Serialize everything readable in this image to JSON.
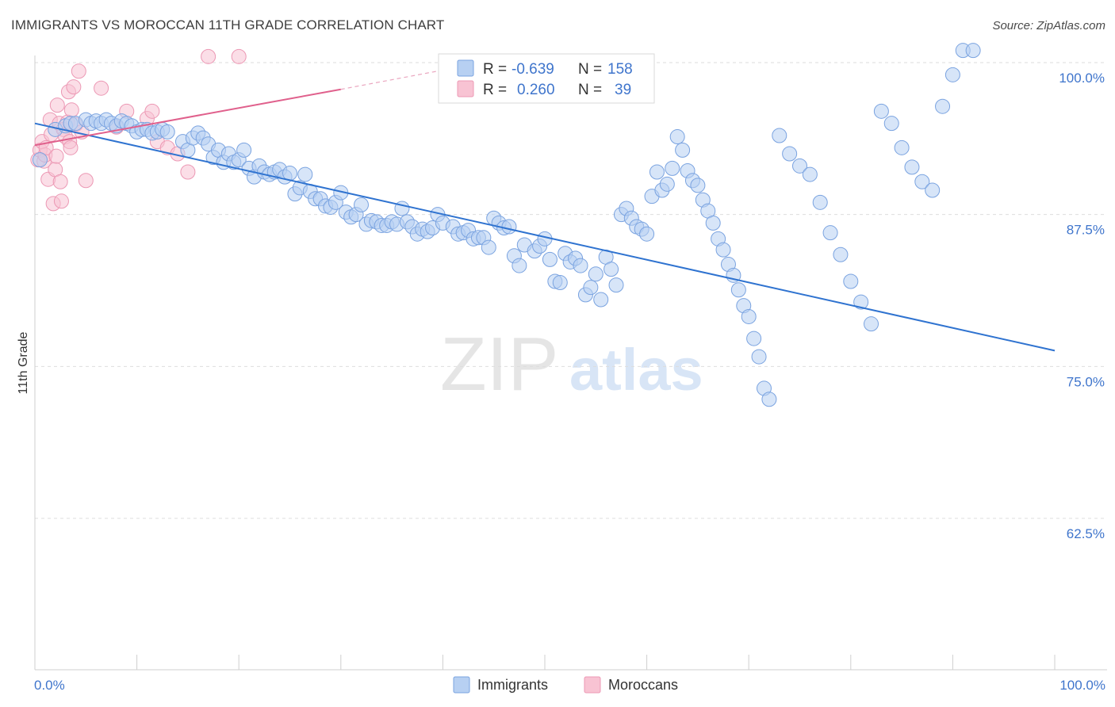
{
  "header": {
    "title": "IMMIGRANTS VS MOROCCAN 11TH GRADE CORRELATION CHART",
    "source": "Source: ZipAtlas.com"
  },
  "watermark": {
    "zip": "ZIP",
    "atlas": "atlas"
  },
  "legend_top": [
    {
      "r_label": "R =",
      "r_value": "-0.639",
      "n_label": "N =",
      "n_value": "158"
    },
    {
      "r_label": "R =",
      "r_value": "0.260",
      "n_label": "N =",
      "n_value": "39"
    }
  ],
  "legend_bottom": [
    "Immigrants",
    "Moroccans"
  ],
  "colors": {
    "immigrants_fill": "#b7d0f2",
    "immigrants_stroke": "#7aa3e0",
    "immigrants_line": "#2f73d0",
    "moroccans_fill": "#f8c3d3",
    "moroccans_stroke": "#ec98b4",
    "moroccans_line": "#e0608c",
    "tick_label": "#3f75cc",
    "grid": "#dddddd"
  },
  "chart_data": {
    "type": "scatter",
    "title": "IMMIGRANTS VS MOROCCAN 11TH GRADE CORRELATION CHART",
    "xlabel": "",
    "ylabel": "11th Grade",
    "xlim": [
      0,
      100
    ],
    "ylim": [
      50.5,
      101.5
    ],
    "x_tick_labels": [
      "0.0%",
      "100.0%"
    ],
    "y_ticks": [
      100,
      87.5,
      75,
      62.5
    ],
    "y_tick_labels": [
      "100.0%",
      "87.5%",
      "75.0%",
      "62.5%"
    ],
    "grid": "horizontal dashed",
    "series": [
      {
        "name": "Immigrants",
        "R": -0.639,
        "N": 158,
        "trend": {
          "x": [
            0,
            100
          ],
          "y": [
            95.0,
            76.3
          ]
        },
        "points": [
          [
            0.5,
            92.0
          ],
          [
            2.0,
            94.5
          ],
          [
            3.0,
            94.8
          ],
          [
            3.5,
            95.0
          ],
          [
            4.0,
            95.0
          ],
          [
            5.0,
            95.3
          ],
          [
            5.5,
            95.0
          ],
          [
            6.0,
            95.2
          ],
          [
            6.5,
            95.0
          ],
          [
            7.0,
            95.3
          ],
          [
            7.5,
            95.0
          ],
          [
            8.0,
            94.8
          ],
          [
            8.5,
            95.2
          ],
          [
            9.0,
            95.0
          ],
          [
            9.5,
            94.8
          ],
          [
            10.0,
            94.3
          ],
          [
            10.5,
            94.5
          ],
          [
            11.0,
            94.5
          ],
          [
            11.5,
            94.2
          ],
          [
            12.0,
            94.3
          ],
          [
            12.5,
            94.5
          ],
          [
            13.0,
            94.3
          ],
          [
            14.5,
            93.5
          ],
          [
            15.0,
            92.8
          ],
          [
            15.5,
            93.8
          ],
          [
            16.0,
            94.2
          ],
          [
            16.5,
            93.8
          ],
          [
            17.0,
            93.3
          ],
          [
            17.5,
            92.2
          ],
          [
            18.0,
            92.8
          ],
          [
            18.5,
            91.8
          ],
          [
            19.0,
            92.5
          ],
          [
            19.5,
            91.8
          ],
          [
            20.0,
            92.0
          ],
          [
            20.5,
            92.8
          ],
          [
            21.0,
            91.3
          ],
          [
            21.5,
            90.6
          ],
          [
            22.0,
            91.5
          ],
          [
            22.5,
            91.0
          ],
          [
            23.0,
            90.8
          ],
          [
            23.5,
            91.0
          ],
          [
            24.0,
            91.2
          ],
          [
            24.5,
            90.6
          ],
          [
            25.0,
            90.9
          ],
          [
            25.5,
            89.2
          ],
          [
            26.0,
            89.7
          ],
          [
            26.5,
            90.8
          ],
          [
            27.0,
            89.4
          ],
          [
            27.5,
            88.8
          ],
          [
            28.0,
            88.8
          ],
          [
            28.5,
            88.2
          ],
          [
            29.0,
            88.1
          ],
          [
            29.5,
            88.5
          ],
          [
            30.0,
            89.3
          ],
          [
            30.5,
            87.7
          ],
          [
            31.0,
            87.3
          ],
          [
            31.5,
            87.5
          ],
          [
            32.0,
            88.3
          ],
          [
            32.5,
            86.7
          ],
          [
            33.0,
            87.0
          ],
          [
            33.5,
            86.9
          ],
          [
            34.0,
            86.6
          ],
          [
            34.5,
            86.6
          ],
          [
            35.0,
            86.9
          ],
          [
            35.5,
            86.7
          ],
          [
            36.0,
            88.0
          ],
          [
            36.5,
            86.9
          ],
          [
            37.0,
            86.5
          ],
          [
            37.5,
            85.9
          ],
          [
            38.0,
            86.3
          ],
          [
            38.5,
            86.1
          ],
          [
            39.0,
            86.4
          ],
          [
            39.5,
            87.5
          ],
          [
            40.0,
            86.8
          ],
          [
            41.0,
            86.5
          ],
          [
            41.5,
            85.9
          ],
          [
            42.0,
            86.0
          ],
          [
            42.5,
            86.2
          ],
          [
            43.0,
            85.5
          ],
          [
            43.5,
            85.6
          ],
          [
            44.0,
            85.6
          ],
          [
            44.5,
            84.8
          ],
          [
            45.0,
            87.2
          ],
          [
            45.5,
            86.8
          ],
          [
            46.0,
            86.4
          ],
          [
            46.5,
            86.5
          ],
          [
            47.0,
            84.1
          ],
          [
            47.5,
            83.3
          ],
          [
            48.0,
            85.0
          ],
          [
            49.0,
            84.5
          ],
          [
            49.5,
            84.9
          ],
          [
            50.0,
            85.5
          ],
          [
            50.5,
            83.8
          ],
          [
            51.0,
            82.0
          ],
          [
            51.5,
            81.9
          ],
          [
            52.0,
            84.3
          ],
          [
            52.5,
            83.6
          ],
          [
            53.0,
            83.9
          ],
          [
            53.5,
            83.3
          ],
          [
            54.0,
            80.9
          ],
          [
            54.5,
            81.5
          ],
          [
            55.0,
            82.6
          ],
          [
            55.5,
            80.5
          ],
          [
            56.0,
            84.0
          ],
          [
            56.5,
            83.0
          ],
          [
            57.0,
            81.7
          ],
          [
            57.5,
            87.5
          ],
          [
            58.0,
            88.0
          ],
          [
            58.5,
            87.2
          ],
          [
            59.0,
            86.5
          ],
          [
            59.5,
            86.3
          ],
          [
            60.0,
            85.9
          ],
          [
            60.5,
            89.0
          ],
          [
            61.0,
            91.0
          ],
          [
            61.5,
            89.5
          ],
          [
            62.0,
            90.0
          ],
          [
            62.5,
            91.3
          ],
          [
            63.0,
            93.9
          ],
          [
            63.5,
            92.8
          ],
          [
            64.0,
            91.1
          ],
          [
            64.5,
            90.3
          ],
          [
            65.0,
            89.9
          ],
          [
            65.5,
            88.7
          ],
          [
            66.0,
            87.8
          ],
          [
            66.5,
            86.8
          ],
          [
            67.0,
            85.5
          ],
          [
            67.5,
            84.6
          ],
          [
            68.0,
            83.4
          ],
          [
            68.5,
            82.5
          ],
          [
            69.0,
            81.3
          ],
          [
            69.5,
            80.0
          ],
          [
            70.0,
            79.1
          ],
          [
            70.5,
            77.3
          ],
          [
            71.0,
            75.8
          ],
          [
            71.5,
            73.2
          ],
          [
            72.0,
            72.3
          ],
          [
            73.0,
            94.0
          ],
          [
            74.0,
            92.5
          ],
          [
            75.0,
            91.5
          ],
          [
            76.0,
            90.8
          ],
          [
            77.0,
            88.5
          ],
          [
            78.0,
            86.0
          ],
          [
            79.0,
            84.2
          ],
          [
            80.0,
            82.0
          ],
          [
            81.0,
            80.3
          ],
          [
            82.0,
            78.5
          ],
          [
            83.0,
            96.0
          ],
          [
            84.0,
            95.0
          ],
          [
            85.0,
            93.0
          ],
          [
            86.0,
            91.4
          ],
          [
            87.0,
            90.2
          ],
          [
            88.0,
            89.5
          ],
          [
            89.0,
            96.4
          ],
          [
            90.0,
            99.0
          ],
          [
            91.0,
            101.0
          ],
          [
            92.0,
            101.0
          ]
        ]
      },
      {
        "name": "Moroccans",
        "R": 0.26,
        "N": 39,
        "trend": {
          "x": [
            0,
            30
          ],
          "y": [
            93.2,
            97.8
          ]
        },
        "trend_dashed": {
          "x": [
            30,
            42
          ],
          "y": [
            97.8,
            99.7
          ]
        },
        "points": [
          [
            0.3,
            92.0
          ],
          [
            0.5,
            92.8
          ],
          [
            0.7,
            93.5
          ],
          [
            0.9,
            91.9
          ],
          [
            1.0,
            92.4
          ],
          [
            1.1,
            93.0
          ],
          [
            1.3,
            90.4
          ],
          [
            1.5,
            95.3
          ],
          [
            1.6,
            94.1
          ],
          [
            1.8,
            88.4
          ],
          [
            2.0,
            91.2
          ],
          [
            2.1,
            92.3
          ],
          [
            2.2,
            96.5
          ],
          [
            2.4,
            95.0
          ],
          [
            2.5,
            90.2
          ],
          [
            2.6,
            88.6
          ],
          [
            2.8,
            94.5
          ],
          [
            3.0,
            93.9
          ],
          [
            3.2,
            95.1
          ],
          [
            3.3,
            97.6
          ],
          [
            3.4,
            93.5
          ],
          [
            3.5,
            93.0
          ],
          [
            3.6,
            96.1
          ],
          [
            3.8,
            98.0
          ],
          [
            4.0,
            94.9
          ],
          [
            4.3,
            99.3
          ],
          [
            4.6,
            94.3
          ],
          [
            5.0,
            90.3
          ],
          [
            6.5,
            97.9
          ],
          [
            8.0,
            94.7
          ],
          [
            9.0,
            96.0
          ],
          [
            11.0,
            95.4
          ],
          [
            11.5,
            96.0
          ],
          [
            12.0,
            93.5
          ],
          [
            13.0,
            93.0
          ],
          [
            14.0,
            92.5
          ],
          [
            15.0,
            91.0
          ],
          [
            17.0,
            100.5
          ],
          [
            20.0,
            100.5
          ]
        ]
      }
    ]
  }
}
